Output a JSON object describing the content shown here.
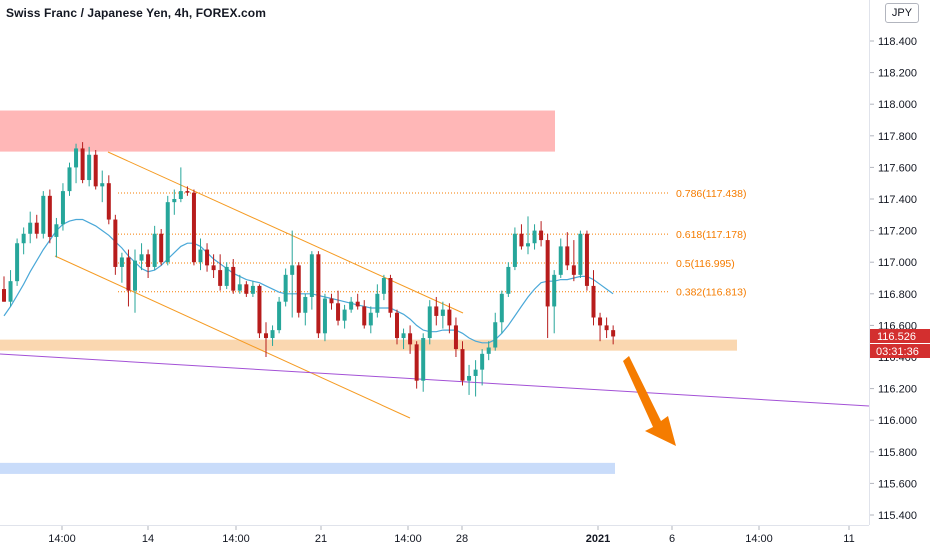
{
  "header": {
    "title": "Swiss Franc / Japanese Yen, 4h, FOREX.com"
  },
  "currency_button": "JPY",
  "colors": {
    "bull": "#26a69a",
    "bear": "#b71c1c",
    "ma": "#4aa8d8",
    "channel": "#f59b23",
    "fib": "#f57c00",
    "resistance_zone": "#ffb7b7",
    "support_zone": "#fad7b0",
    "target_zone": "#c9dcfa",
    "trendline": "#a351d6",
    "arrow": "#f57c00",
    "price_tag": "#d32f2f"
  },
  "price_tag": {
    "price": "116.526",
    "countdown": "03:31:36"
  },
  "chart_data": {
    "type": "candlestick",
    "title": "Swiss Franc / Japanese Yen, 4h, FOREX.com",
    "ylim": [
      115.3,
      118.5
    ],
    "y_ticks": [
      "118.400",
      "118.200",
      "118.000",
      "117.800",
      "117.600",
      "117.400",
      "117.200",
      "117.000",
      "116.800",
      "116.600",
      "116.400",
      "116.200",
      "116.000",
      "115.800",
      "115.600",
      "115.400"
    ],
    "x_ticks": [
      "14:00",
      "14",
      "14:00",
      "21",
      "14:00",
      "28",
      "2021",
      "6",
      "14:00",
      "11"
    ],
    "fib_levels": [
      {
        "ratio": "0.786",
        "price": 117.438,
        "label": "0.786(117.438)"
      },
      {
        "ratio": "0.618",
        "price": 117.178,
        "label": "0.618(117.178)"
      },
      {
        "ratio": "0.5",
        "price": 116.995,
        "label": "0.5(116.995)"
      },
      {
        "ratio": "0.382",
        "price": 116.813,
        "label": "0.382(116.813)"
      }
    ],
    "zones": [
      {
        "name": "resistance",
        "low": 117.7,
        "high": 117.96
      },
      {
        "name": "support",
        "low": 116.44,
        "high": 116.51
      },
      {
        "name": "target",
        "low": 115.66,
        "high": 115.73
      }
    ],
    "candles": [
      [
        116.83,
        116.91,
        116.75,
        116.75
      ],
      [
        116.75,
        116.95,
        116.72,
        116.88
      ],
      [
        116.88,
        117.15,
        116.85,
        117.12
      ],
      [
        117.12,
        117.22,
        117.05,
        117.18
      ],
      [
        117.18,
        117.32,
        117.12,
        117.25
      ],
      [
        117.25,
        117.3,
        117.15,
        117.18
      ],
      [
        117.18,
        117.45,
        117.15,
        117.42
      ],
      [
        117.42,
        117.46,
        117.12,
        117.16
      ],
      [
        117.16,
        117.28,
        117.03,
        117.24
      ],
      [
        117.24,
        117.5,
        117.2,
        117.45
      ],
      [
        117.45,
        117.63,
        117.42,
        117.6
      ],
      [
        117.6,
        117.75,
        117.5,
        117.72
      ],
      [
        117.72,
        117.76,
        117.5,
        117.52
      ],
      [
        117.52,
        117.73,
        117.48,
        117.68
      ],
      [
        117.68,
        117.71,
        117.46,
        117.48
      ],
      [
        117.48,
        117.58,
        117.38,
        117.5
      ],
      [
        117.5,
        117.55,
        117.24,
        117.27
      ],
      [
        117.27,
        117.3,
        116.92,
        116.97
      ],
      [
        116.97,
        117.06,
        116.87,
        117.03
      ],
      [
        117.03,
        117.08,
        116.72,
        116.82
      ],
      [
        116.82,
        117.08,
        116.68,
        117.01
      ],
      [
        117.01,
        117.12,
        116.95,
        117.05
      ],
      [
        117.05,
        117.08,
        116.9,
        116.97
      ],
      [
        116.97,
        117.23,
        116.95,
        117.18
      ],
      [
        117.18,
        117.21,
        116.98,
        117.0
      ],
      [
        117.0,
        117.42,
        116.98,
        117.38
      ],
      [
        117.38,
        117.46,
        117.3,
        117.4
      ],
      [
        117.4,
        117.6,
        117.38,
        117.45
      ],
      [
        117.45,
        117.48,
        117.42,
        117.44
      ],
      [
        117.44,
        117.46,
        116.98,
        117.0
      ],
      [
        117.0,
        117.15,
        116.95,
        117.08
      ],
      [
        117.08,
        117.12,
        116.94,
        116.98
      ],
      [
        116.98,
        117.05,
        116.9,
        116.95
      ],
      [
        116.95,
        117.05,
        116.82,
        116.85
      ],
      [
        116.85,
        117.0,
        116.83,
        116.97
      ],
      [
        116.97,
        117.02,
        116.8,
        116.82
      ],
      [
        116.82,
        116.92,
        116.8,
        116.86
      ],
      [
        116.86,
        116.88,
        116.78,
        116.8
      ],
      [
        116.8,
        116.88,
        116.78,
        116.85
      ],
      [
        116.85,
        116.86,
        116.52,
        116.55
      ],
      [
        116.55,
        116.62,
        116.4,
        116.52
      ],
      [
        116.52,
        116.6,
        116.47,
        116.57
      ],
      [
        116.57,
        116.78,
        116.55,
        116.75
      ],
      [
        116.75,
        116.96,
        116.72,
        116.92
      ],
      [
        116.92,
        117.2,
        116.65,
        116.98
      ],
      [
        116.98,
        117.0,
        116.65,
        116.68
      ],
      [
        116.68,
        116.8,
        116.6,
        116.78
      ],
      [
        116.78,
        117.07,
        116.7,
        117.05
      ],
      [
        117.05,
        117.07,
        116.52,
        116.55
      ],
      [
        116.55,
        116.8,
        116.5,
        116.77
      ],
      [
        116.77,
        116.8,
        116.7,
        116.74
      ],
      [
        116.74,
        116.82,
        116.6,
        116.63
      ],
      [
        116.63,
        116.73,
        116.58,
        116.7
      ],
      [
        116.7,
        116.78,
        116.68,
        116.75
      ],
      [
        116.75,
        116.8,
        116.7,
        116.72
      ],
      [
        116.72,
        116.76,
        116.58,
        116.6
      ],
      [
        116.6,
        116.72,
        116.55,
        116.68
      ],
      [
        116.68,
        116.86,
        116.65,
        116.8
      ],
      [
        116.8,
        116.92,
        116.76,
        116.9
      ],
      [
        116.9,
        116.92,
        116.65,
        116.68
      ],
      [
        116.68,
        116.7,
        116.48,
        116.52
      ],
      [
        116.52,
        116.58,
        116.45,
        116.55
      ],
      [
        116.55,
        116.6,
        116.42,
        116.48
      ],
      [
        116.48,
        116.5,
        116.2,
        116.25
      ],
      [
        116.25,
        116.55,
        116.18,
        116.52
      ],
      [
        116.52,
        116.76,
        116.48,
        116.72
      ],
      [
        116.72,
        116.78,
        116.6,
        116.66
      ],
      [
        116.66,
        116.75,
        116.58,
        116.7
      ],
      [
        116.7,
        116.74,
        116.55,
        116.6
      ],
      [
        116.6,
        116.65,
        116.4,
        116.45
      ],
      [
        116.45,
        116.5,
        116.22,
        116.25
      ],
      [
        116.25,
        116.35,
        116.16,
        116.28
      ],
      [
        116.28,
        116.38,
        116.15,
        116.32
      ],
      [
        116.32,
        116.45,
        116.22,
        116.42
      ],
      [
        116.42,
        116.5,
        116.38,
        116.46
      ],
      [
        116.46,
        116.68,
        116.44,
        116.62
      ],
      [
        116.62,
        116.82,
        116.55,
        116.8
      ],
      [
        116.8,
        117.0,
        116.78,
        116.97
      ],
      [
        116.97,
        117.22,
        116.95,
        117.18
      ],
      [
        117.18,
        117.24,
        117.08,
        117.1
      ],
      [
        117.1,
        117.29,
        117.05,
        117.12
      ],
      [
        117.12,
        117.24,
        117.08,
        117.2
      ],
      [
        117.2,
        117.26,
        117.1,
        117.14
      ],
      [
        117.14,
        117.18,
        116.52,
        116.72
      ],
      [
        116.72,
        116.95,
        116.55,
        116.92
      ],
      [
        116.92,
        117.15,
        116.9,
        117.1
      ],
      [
        117.1,
        117.19,
        116.95,
        116.98
      ],
      [
        116.98,
        117.14,
        116.88,
        116.92
      ],
      [
        116.92,
        117.2,
        116.9,
        117.18
      ],
      [
        117.18,
        117.2,
        116.82,
        116.85
      ],
      [
        116.85,
        116.95,
        116.6,
        116.65
      ],
      [
        116.65,
        116.68,
        116.5,
        116.6
      ],
      [
        116.6,
        116.65,
        116.52,
        116.57
      ],
      [
        116.57,
        116.6,
        116.48,
        116.53
      ]
    ],
    "ma": [
      116.66,
      116.72,
      116.79,
      116.86,
      116.94,
      117.01,
      117.08,
      117.14,
      117.2,
      117.24,
      117.26,
      117.27,
      117.27,
      117.25,
      117.23,
      117.2,
      117.17,
      117.13,
      117.09,
      117.04,
      117.0,
      116.96,
      116.94,
      116.95,
      116.98,
      117.02,
      117.06,
      117.1,
      117.12,
      117.12,
      117.1,
      117.06,
      117.02,
      116.99,
      116.96,
      116.93,
      116.91,
      116.89,
      116.88,
      116.87,
      116.85,
      116.83,
      116.81,
      116.8,
      116.8,
      116.8,
      116.8,
      116.8,
      116.79,
      116.78,
      116.77,
      116.76,
      116.75,
      116.74,
      116.73,
      116.72,
      116.71,
      116.71,
      116.71,
      116.71,
      116.69,
      116.67,
      116.64,
      116.6,
      116.57,
      116.56,
      116.56,
      116.57,
      116.57,
      116.57,
      116.55,
      116.52,
      116.5,
      116.49,
      116.49,
      116.51,
      116.55,
      116.6,
      116.66,
      116.72,
      116.78,
      116.83,
      116.87,
      116.88,
      116.88,
      116.89,
      116.89,
      116.9,
      116.91,
      116.91,
      116.89,
      116.86,
      116.83,
      116.8
    ]
  }
}
